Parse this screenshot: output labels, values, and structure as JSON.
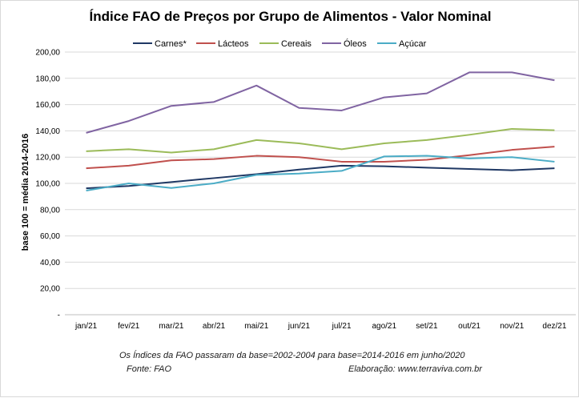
{
  "chart_data": {
    "type": "line",
    "title": "Índice FAO de Preços por Grupo de Alimentos - Valor Nominal",
    "ylabel": "base 100 = média 2014-2016",
    "xlabel": "",
    "ylim": [
      0,
      200
    ],
    "y_ticks": [
      "-",
      "20,00",
      "40,00",
      "60,00",
      "80,00",
      "100,00",
      "120,00",
      "140,00",
      "160,00",
      "180,00",
      "200,00"
    ],
    "categories": [
      "jan/21",
      "fev/21",
      "mar/21",
      "abr/21",
      "mai/21",
      "jun/21",
      "jul/21",
      "ago/21",
      "set/21",
      "out/21",
      "nov/21",
      "dez/21"
    ],
    "grid": true,
    "legend_position": "top",
    "series": [
      {
        "name": "Carnes*",
        "color": "#1f3864",
        "values": [
          96.3,
          98.0,
          101.0,
          104.0,
          107.0,
          110.5,
          113.5,
          113.0,
          112.0,
          111.0,
          110.0,
          111.5
        ]
      },
      {
        "name": "Lácteos",
        "color": "#c0504d",
        "values": [
          111.5,
          113.5,
          117.5,
          118.5,
          121.0,
          120.0,
          116.5,
          116.5,
          118.0,
          121.5,
          125.5,
          128.0
        ]
      },
      {
        "name": "Cereais",
        "color": "#9bbb59",
        "values": [
          124.5,
          126.0,
          123.5,
          126.0,
          133.0,
          130.5,
          126.0,
          130.5,
          133.0,
          137.0,
          141.5,
          140.5
        ]
      },
      {
        "name": "Óleos",
        "color": "#8064a2",
        "values": [
          138.5,
          147.5,
          159.0,
          162.0,
          174.5,
          157.5,
          155.5,
          165.5,
          168.5,
          184.5,
          184.5,
          178.5
        ]
      },
      {
        "name": "Açúcar",
        "color": "#4bacc6",
        "values": [
          94.5,
          100.0,
          96.5,
          100.0,
          106.5,
          107.5,
          109.5,
          120.5,
          121.0,
          119.0,
          120.0,
          116.5
        ]
      }
    ]
  },
  "notes": {
    "line1": "Os Índices da FAO passaram da base=2002-2004 para base=2014-2016 em junho/2020",
    "source": "Fonte: FAO",
    "credit": "Elaboração: www.terraviva.com.br"
  }
}
